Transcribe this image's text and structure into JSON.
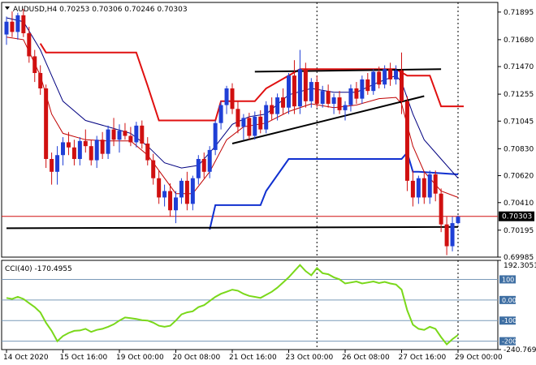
{
  "header": {
    "symbol_line": "AUDUSD,H4  0.70253 0.70306 0.70246 0.70303"
  },
  "indicator": {
    "label": "CCI(40) -170.4955"
  },
  "colors": {
    "bull": "#1f3fd6",
    "bear": "#d01010",
    "slow_ma": "#000080",
    "fast_ma": "#c00000",
    "upper_step": "#e01010",
    "lower_step": "#1030d0",
    "trendline": "#000000",
    "cci": "#7ad81a",
    "price_tag_bg": "#000000",
    "price_tag_fg": "#ffffff",
    "price_line": "#d01010"
  },
  "chart_data": [
    {
      "type": "candlestick",
      "symbol": "AUDUSD",
      "timeframe": "H4",
      "header_values": {
        "open": 0.70253,
        "high": 0.70306,
        "low": 0.70246,
        "close": 0.70303
      },
      "ylim": [
        0.69985,
        0.7197
      ],
      "y_ticks": [
        "0.71895",
        "0.71680",
        "0.71470",
        "0.71255",
        "0.71045",
        "0.70830",
        "0.70620",
        "0.70410",
        "0.70195",
        "0.69985"
      ],
      "y_tick_values": [
        0.71895,
        0.7168,
        0.7147,
        0.71255,
        0.71045,
        0.7083,
        0.7062,
        0.7041,
        0.70195,
        0.69985
      ],
      "current_price": "0.70303",
      "current_price_value": 0.70303,
      "x_tick_labels": [
        "14 Oct 2020",
        "15 Oct 16:00",
        "19 Oct 00:00",
        "20 Oct 08:00",
        "21 Oct 16:00",
        "23 Oct 00:00",
        "26 Oct 08:00",
        "27 Oct 16:00",
        "29 Oct 00:00"
      ],
      "x_tick_index": [
        0,
        10,
        20,
        30,
        40,
        50,
        60,
        70,
        80
      ],
      "session_separators_index": [
        55,
        80
      ],
      "candles": [
        [
          0.7172,
          0.7186,
          0.7164,
          0.7182
        ],
        [
          0.7182,
          0.719,
          0.717,
          0.7174
        ],
        [
          0.7174,
          0.7189,
          0.7168,
          0.7187
        ],
        [
          0.7187,
          0.7192,
          0.717,
          0.7173
        ],
        [
          0.7173,
          0.7178,
          0.715,
          0.7155
        ],
        [
          0.7155,
          0.716,
          0.7135,
          0.7142
        ],
        [
          0.7142,
          0.7148,
          0.7125,
          0.713
        ],
        [
          0.713,
          0.7133,
          0.7068,
          0.7075
        ],
        [
          0.7075,
          0.708,
          0.7055,
          0.7065
        ],
        [
          0.7065,
          0.7085,
          0.7055,
          0.7078
        ],
        [
          0.7078,
          0.7092,
          0.707,
          0.7088
        ],
        [
          0.7088,
          0.7096,
          0.7078,
          0.7084
        ],
        [
          0.7084,
          0.709,
          0.707,
          0.7075
        ],
        [
          0.7075,
          0.7092,
          0.707,
          0.7089
        ],
        [
          0.7089,
          0.7098,
          0.708,
          0.7085
        ],
        [
          0.7085,
          0.709,
          0.707,
          0.7074
        ],
        [
          0.7074,
          0.7093,
          0.7068,
          0.709
        ],
        [
          0.709,
          0.7096,
          0.7075,
          0.7079
        ],
        [
          0.7079,
          0.7101,
          0.7075,
          0.7098
        ],
        [
          0.7098,
          0.7107,
          0.7085,
          0.709
        ],
        [
          0.709,
          0.7102,
          0.708,
          0.7097
        ],
        [
          0.7097,
          0.7103,
          0.709,
          0.7093
        ],
        [
          0.7093,
          0.71,
          0.7085,
          0.7088
        ],
        [
          0.7088,
          0.7104,
          0.7084,
          0.7101
        ],
        [
          0.7101,
          0.7105,
          0.7083,
          0.7087
        ],
        [
          0.7087,
          0.7092,
          0.707,
          0.7074
        ],
        [
          0.7074,
          0.7079,
          0.7055,
          0.706
        ],
        [
          0.706,
          0.7066,
          0.704,
          0.7045
        ],
        [
          0.7045,
          0.7055,
          0.7038,
          0.705
        ],
        [
          0.705,
          0.7056,
          0.703,
          0.7035
        ],
        [
          0.7035,
          0.705,
          0.7025,
          0.7045
        ],
        [
          0.7045,
          0.706,
          0.704,
          0.7058
        ],
        [
          0.7058,
          0.7065,
          0.7035,
          0.704
        ],
        [
          0.704,
          0.7062,
          0.7035,
          0.706
        ],
        [
          0.706,
          0.7078,
          0.7055,
          0.7075
        ],
        [
          0.7075,
          0.708,
          0.706,
          0.7065
        ],
        [
          0.7065,
          0.7085,
          0.706,
          0.7082
        ],
        [
          0.7082,
          0.7105,
          0.7078,
          0.7103
        ],
        [
          0.7103,
          0.712,
          0.7098,
          0.7117
        ],
        [
          0.7117,
          0.7132,
          0.711,
          0.713
        ],
        [
          0.713,
          0.7134,
          0.711,
          0.7114
        ],
        [
          0.7114,
          0.712,
          0.7095,
          0.71
        ],
        [
          0.71,
          0.711,
          0.709,
          0.7107
        ],
        [
          0.7107,
          0.7111,
          0.709,
          0.7093
        ],
        [
          0.7093,
          0.7112,
          0.709,
          0.7108
        ],
        [
          0.7108,
          0.7113,
          0.7095,
          0.7098
        ],
        [
          0.7098,
          0.712,
          0.7095,
          0.7117
        ],
        [
          0.7117,
          0.7123,
          0.7105,
          0.711
        ],
        [
          0.711,
          0.7126,
          0.7105,
          0.7123
        ],
        [
          0.7123,
          0.713,
          0.711,
          0.7115
        ],
        [
          0.7115,
          0.7142,
          0.711,
          0.714
        ],
        [
          0.714,
          0.7152,
          0.711,
          0.7116
        ],
        [
          0.7116,
          0.716,
          0.711,
          0.7145
        ],
        [
          0.7145,
          0.715,
          0.7115,
          0.712
        ],
        [
          0.712,
          0.7138,
          0.7115,
          0.7135
        ],
        [
          0.7135,
          0.714,
          0.7115,
          0.7118
        ],
        [
          0.7118,
          0.7132,
          0.7115,
          0.7128
        ],
        [
          0.7128,
          0.7133,
          0.7115,
          0.7118
        ],
        [
          0.7118,
          0.7126,
          0.711,
          0.7123
        ],
        [
          0.7123,
          0.7128,
          0.711,
          0.7113
        ],
        [
          0.7113,
          0.712,
          0.7105,
          0.7117
        ],
        [
          0.7117,
          0.7133,
          0.7112,
          0.713
        ],
        [
          0.713,
          0.7135,
          0.7118,
          0.7122
        ],
        [
          0.7122,
          0.714,
          0.7118,
          0.7137
        ],
        [
          0.7137,
          0.7142,
          0.7125,
          0.7128
        ],
        [
          0.7128,
          0.7145,
          0.7125,
          0.7143
        ],
        [
          0.7143,
          0.7147,
          0.713,
          0.7133
        ],
        [
          0.7133,
          0.7148,
          0.713,
          0.7145
        ],
        [
          0.7145,
          0.715,
          0.7132,
          0.7137
        ],
        [
          0.7137,
          0.7148,
          0.7133,
          0.7144
        ],
        [
          0.7144,
          0.7158,
          0.711,
          0.712
        ],
        [
          0.712,
          0.7124,
          0.705,
          0.7058
        ],
        [
          0.7058,
          0.7066,
          0.7038,
          0.7045
        ],
        [
          0.7045,
          0.7062,
          0.704,
          0.706
        ],
        [
          0.706,
          0.7064,
          0.704,
          0.7045
        ],
        [
          0.7045,
          0.7066,
          0.704,
          0.7063
        ],
        [
          0.7063,
          0.7066,
          0.7042,
          0.7048
        ],
        [
          0.7048,
          0.7052,
          0.7018,
          0.7024
        ],
        [
          0.7024,
          0.703,
          0.7,
          0.7007
        ],
        [
          0.7007,
          0.703,
          0.7003,
          0.7025
        ],
        [
          0.7025,
          0.7031,
          0.7024,
          0.703
        ]
      ],
      "slow_ma": [
        [
          0,
          0.7185
        ],
        [
          3,
          0.7182
        ],
        [
          6,
          0.716
        ],
        [
          8,
          0.714
        ],
        [
          10,
          0.712
        ],
        [
          14,
          0.7105
        ],
        [
          18,
          0.71
        ],
        [
          22,
          0.7095
        ],
        [
          25,
          0.7085
        ],
        [
          28,
          0.7072
        ],
        [
          31,
          0.7068
        ],
        [
          34,
          0.707
        ],
        [
          37,
          0.7085
        ],
        [
          40,
          0.7102
        ],
        [
          43,
          0.7108
        ],
        [
          46,
          0.711
        ],
        [
          50,
          0.7125
        ],
        [
          54,
          0.713
        ],
        [
          58,
          0.7127
        ],
        [
          62,
          0.7127
        ],
        [
          66,
          0.7135
        ],
        [
          69,
          0.714
        ],
        [
          70,
          0.7135
        ],
        [
          72,
          0.711
        ],
        [
          74,
          0.709
        ],
        [
          77,
          0.7075
        ],
        [
          80,
          0.706
        ]
      ],
      "fast_ma": [
        [
          0,
          0.717
        ],
        [
          3,
          0.7168
        ],
        [
          6,
          0.714
        ],
        [
          8,
          0.711
        ],
        [
          10,
          0.7095
        ],
        [
          14,
          0.709
        ],
        [
          18,
          0.7089
        ],
        [
          22,
          0.7089
        ],
        [
          25,
          0.7078
        ],
        [
          28,
          0.706
        ],
        [
          30,
          0.7048
        ],
        [
          33,
          0.7048
        ],
        [
          36,
          0.7065
        ],
        [
          39,
          0.709
        ],
        [
          42,
          0.71
        ],
        [
          46,
          0.7103
        ],
        [
          50,
          0.7112
        ],
        [
          54,
          0.7118
        ],
        [
          58,
          0.7115
        ],
        [
          62,
          0.7117
        ],
        [
          66,
          0.7122
        ],
        [
          69,
          0.7123
        ],
        [
          70,
          0.7118
        ],
        [
          72,
          0.7085
        ],
        [
          74,
          0.7065
        ],
        [
          77,
          0.705
        ],
        [
          80,
          0.7045
        ]
      ],
      "upper_step": [
        [
          6,
          0.7165
        ],
        [
          7,
          0.7158
        ],
        [
          23,
          0.7158
        ],
        [
          25,
          0.7132
        ],
        [
          27,
          0.7105
        ],
        [
          33,
          0.7105
        ],
        [
          37,
          0.7105
        ],
        [
          38,
          0.712
        ],
        [
          44,
          0.712
        ],
        [
          46,
          0.713
        ],
        [
          52,
          0.7145
        ],
        [
          69,
          0.7145
        ],
        [
          71,
          0.714
        ],
        [
          75,
          0.714
        ],
        [
          77,
          0.7116
        ],
        [
          81,
          0.7116
        ]
      ],
      "lower_step": [
        [
          36,
          0.702
        ],
        [
          37,
          0.7039
        ],
        [
          45,
          0.7039
        ],
        [
          46,
          0.705
        ],
        [
          50,
          0.7075
        ],
        [
          70,
          0.7075
        ],
        [
          71,
          0.708
        ],
        [
          72,
          0.7065
        ],
        [
          73,
          0.7065
        ],
        [
          80,
          0.7063
        ]
      ],
      "support_line": [
        [
          0,
          0.7021
        ],
        [
          80,
          0.7022
        ]
      ],
      "resistance_line": [
        [
          44,
          0.7143
        ],
        [
          77,
          0.7145
        ]
      ],
      "rising_trendline": [
        [
          40,
          0.7087
        ],
        [
          74,
          0.7124
        ]
      ]
    },
    {
      "type": "line",
      "name": "CCI(40)",
      "current_value": -170.4955,
      "ylim": [
        -240.7699,
        192.3051
      ],
      "y_ticks": [
        "192.3051",
        "100",
        "0.00",
        "-100",
        "-200",
        "-240.7699"
      ],
      "y_tick_values": [
        192.3051,
        100,
        0,
        -100,
        -200,
        -240.7699
      ],
      "levels": [
        100,
        0,
        -100,
        -200
      ],
      "values": [
        [
          0,
          10
        ],
        [
          1,
          5
        ],
        [
          2,
          15
        ],
        [
          3,
          5
        ],
        [
          4,
          -15
        ],
        [
          5,
          -35
        ],
        [
          6,
          -60
        ],
        [
          7,
          -110
        ],
        [
          8,
          -150
        ],
        [
          9,
          -200
        ],
        [
          10,
          -175
        ],
        [
          11,
          -160
        ],
        [
          12,
          -150
        ],
        [
          13,
          -148
        ],
        [
          14,
          -140
        ],
        [
          15,
          -155
        ],
        [
          16,
          -145
        ],
        [
          17,
          -140
        ],
        [
          18,
          -130
        ],
        [
          19,
          -118
        ],
        [
          20,
          -100
        ],
        [
          21,
          -85
        ],
        [
          22,
          -88
        ],
        [
          23,
          -92
        ],
        [
          24,
          -98
        ],
        [
          25,
          -100
        ],
        [
          26,
          -110
        ],
        [
          27,
          -125
        ],
        [
          28,
          -130
        ],
        [
          29,
          -125
        ],
        [
          30,
          -100
        ],
        [
          31,
          -70
        ],
        [
          32,
          -60
        ],
        [
          33,
          -55
        ],
        [
          34,
          -35
        ],
        [
          35,
          -25
        ],
        [
          36,
          -5
        ],
        [
          37,
          15
        ],
        [
          38,
          30
        ],
        [
          39,
          40
        ],
        [
          40,
          50
        ],
        [
          41,
          45
        ],
        [
          42,
          30
        ],
        [
          43,
          20
        ],
        [
          44,
          15
        ],
        [
          45,
          10
        ],
        [
          46,
          25
        ],
        [
          47,
          40
        ],
        [
          48,
          60
        ],
        [
          49,
          85
        ],
        [
          50,
          110
        ],
        [
          51,
          140
        ],
        [
          52,
          170
        ],
        [
          53,
          140
        ],
        [
          54,
          120
        ],
        [
          55,
          155
        ],
        [
          56,
          130
        ],
        [
          57,
          125
        ],
        [
          58,
          110
        ],
        [
          59,
          100
        ],
        [
          60,
          80
        ],
        [
          61,
          85
        ],
        [
          62,
          90
        ],
        [
          63,
          80
        ],
        [
          64,
          85
        ],
        [
          65,
          90
        ],
        [
          66,
          82
        ],
        [
          67,
          88
        ],
        [
          68,
          80
        ],
        [
          69,
          75
        ],
        [
          70,
          50
        ],
        [
          71,
          -50
        ],
        [
          72,
          -120
        ],
        [
          73,
          -140
        ],
        [
          74,
          -145
        ],
        [
          75,
          -130
        ],
        [
          76,
          -140
        ],
        [
          77,
          -180
        ],
        [
          78,
          -215
        ],
        [
          79,
          -190
        ],
        [
          80,
          -170
        ]
      ]
    }
  ]
}
